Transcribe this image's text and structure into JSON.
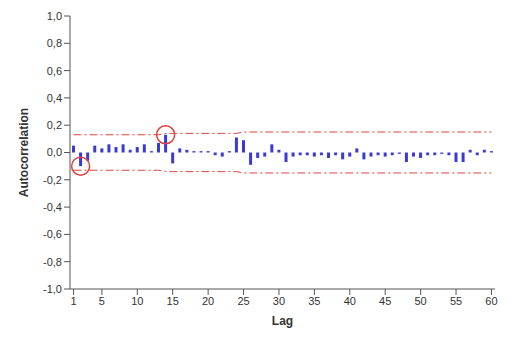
{
  "chart_data": {
    "type": "bar",
    "x_label": "Lag",
    "y_label": "Autocorrelation",
    "x": [
      1,
      2,
      3,
      4,
      5,
      6,
      7,
      8,
      9,
      10,
      11,
      12,
      13,
      14,
      15,
      16,
      17,
      18,
      19,
      20,
      21,
      22,
      23,
      24,
      25,
      26,
      27,
      28,
      29,
      30,
      31,
      32,
      33,
      34,
      35,
      36,
      37,
      38,
      39,
      40,
      41,
      42,
      43,
      44,
      45,
      46,
      47,
      48,
      49,
      50,
      51,
      52,
      53,
      54,
      55,
      56,
      57,
      58,
      59,
      60
    ],
    "values": [
      0.05,
      -0.1,
      -0.06,
      0.05,
      0.03,
      0.06,
      0.04,
      0.06,
      0.02,
      0.04,
      0.06,
      0.01,
      0.07,
      0.13,
      -0.08,
      0.03,
      0.02,
      0.01,
      0.01,
      0.01,
      -0.02,
      -0.03,
      0.01,
      0.11,
      0.09,
      -0.09,
      -0.04,
      -0.03,
      0.06,
      0.02,
      -0.07,
      -0.03,
      -0.02,
      -0.02,
      -0.03,
      -0.02,
      -0.04,
      -0.02,
      -0.05,
      -0.03,
      0.03,
      -0.05,
      -0.03,
      -0.02,
      -0.03,
      -0.02,
      -0.01,
      -0.07,
      -0.03,
      -0.04,
      -0.02,
      -0.02,
      -0.01,
      -0.02,
      -0.07,
      -0.07,
      0.02,
      -0.02,
      0.02,
      0.01
    ],
    "upper_limit": [
      0.13,
      0.13,
      0.13,
      0.13,
      0.13,
      0.13,
      0.13,
      0.13,
      0.13,
      0.13,
      0.13,
      0.13,
      0.13,
      0.14,
      0.14,
      0.14,
      0.14,
      0.14,
      0.14,
      0.14,
      0.14,
      0.14,
      0.14,
      0.14,
      0.15,
      0.15,
      0.15,
      0.15,
      0.15,
      0.15,
      0.15,
      0.15,
      0.15,
      0.15,
      0.15,
      0.15,
      0.15,
      0.15,
      0.15,
      0.15,
      0.15,
      0.15,
      0.15,
      0.15,
      0.15,
      0.15,
      0.15,
      0.15,
      0.15,
      0.15,
      0.15,
      0.15,
      0.15,
      0.15,
      0.15,
      0.15,
      0.15,
      0.15,
      0.15,
      0.15
    ],
    "lower_limit": [
      -0.13,
      -0.13,
      -0.13,
      -0.13,
      -0.13,
      -0.13,
      -0.13,
      -0.13,
      -0.13,
      -0.13,
      -0.13,
      -0.13,
      -0.13,
      -0.14,
      -0.14,
      -0.14,
      -0.14,
      -0.14,
      -0.14,
      -0.14,
      -0.14,
      -0.14,
      -0.14,
      -0.14,
      -0.15,
      -0.15,
      -0.15,
      -0.15,
      -0.15,
      -0.15,
      -0.15,
      -0.15,
      -0.15,
      -0.15,
      -0.15,
      -0.15,
      -0.15,
      -0.15,
      -0.15,
      -0.15,
      -0.15,
      -0.15,
      -0.15,
      -0.15,
      -0.15,
      -0.15,
      -0.15,
      -0.15,
      -0.15,
      -0.15,
      -0.15,
      -0.15,
      -0.15,
      -0.15,
      -0.15,
      -0.15,
      -0.15,
      -0.15,
      -0.15,
      -0.15
    ],
    "highlighted": [
      2,
      14
    ],
    "color": "#3a3ad6",
    "limit_color": "#e0403a",
    "xlim": [
      0.5,
      60.5
    ],
    "xticks": [
      1,
      5,
      10,
      15,
      20,
      25,
      30,
      35,
      40,
      45,
      50,
      55,
      60
    ],
    "ylim": [
      -1,
      1
    ],
    "yticks": [
      {
        "value": -1,
        "label": "-1,0"
      },
      {
        "value": -0.8,
        "label": "-0,8"
      },
      {
        "value": -0.6,
        "label": "-0,6"
      },
      {
        "value": -0.4,
        "label": "-0,4"
      },
      {
        "value": -0.2,
        "label": "-0,2"
      },
      {
        "value": 0,
        "label": "0,0"
      },
      {
        "value": 0.2,
        "label": "0,2"
      },
      {
        "value": 0.4,
        "label": "0,4"
      },
      {
        "value": 0.6,
        "label": "0,6"
      },
      {
        "value": 0.8,
        "label": "0,8"
      },
      {
        "value": 1,
        "label": "1,0"
      }
    ],
    "grid": false
  }
}
